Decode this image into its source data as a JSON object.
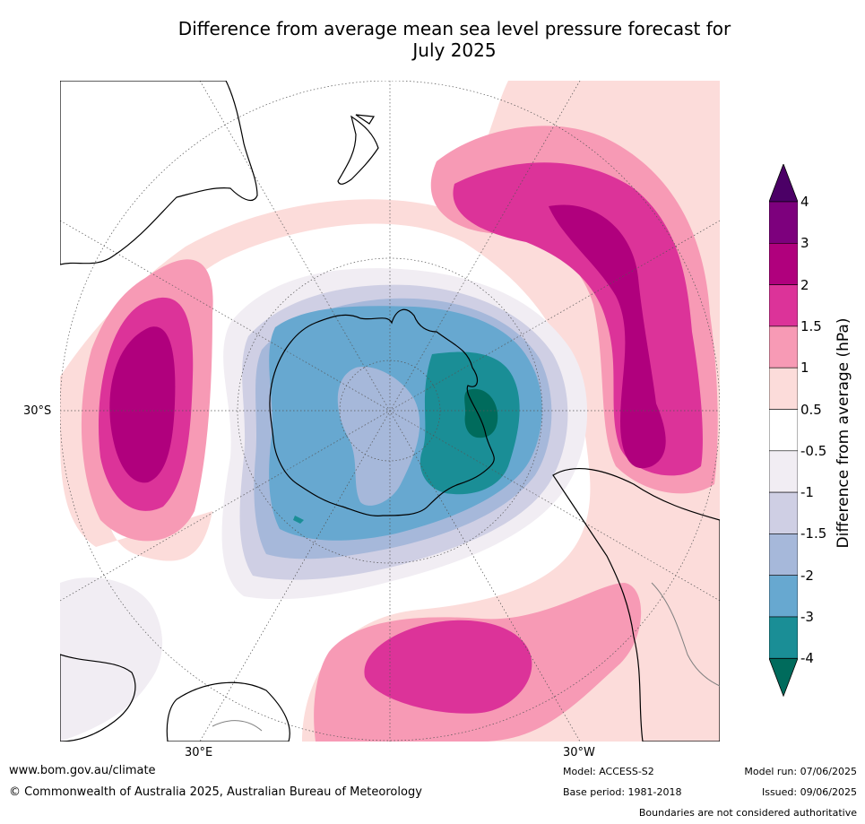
{
  "title": {
    "line1": "Difference from average mean sea level pressure forecast for",
    "line2": "July 2025"
  },
  "map": {
    "projection": "south-polar stereographic",
    "labels": {
      "lat_30s": "30°S",
      "lon_30e": "30°E",
      "lon_30w": "30°W"
    },
    "colors": {
      "ocean": "#ffffff",
      "coast": "#000000",
      "border": "#808080",
      "graticule": "#555555"
    }
  },
  "colorbar": {
    "title": "Difference from average (hPa)",
    "ticks": [
      "4",
      "3",
      "2",
      "1.5",
      "1",
      "0.5",
      "-0.5",
      "-1",
      "-1.5",
      "-2",
      "-3",
      "-4"
    ],
    "colors": [
      "#4b0066",
      "#7d007d",
      "#b0007d",
      "#dc3399",
      "#f79ab5",
      "#fcdcda",
      "#ffffff",
      "#f1edf3",
      "#cfcfe4",
      "#a6b8da",
      "#67a8d0",
      "#1a8e96",
      "#006b5c"
    ],
    "extend": "both"
  },
  "footer": {
    "url": "www.bom.gov.au/climate",
    "copyright": "© Commonwealth of Australia 2025, Australian Bureau of Meteorology",
    "model": "Model: ACCESS-S2",
    "base_period": "Base period: 1981-2018",
    "model_run": "Model run: 07/06/2025",
    "issued": "Issued: 09/06/2025",
    "disclaimer": "Boundaries are not considered authoritative"
  }
}
